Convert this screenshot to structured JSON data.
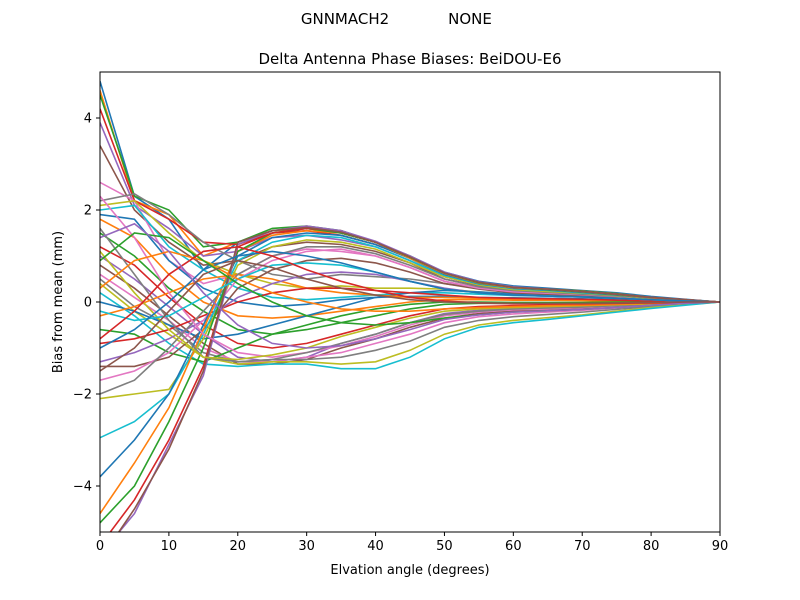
{
  "figure": {
    "suptitle_left": "GNNMACH2",
    "suptitle_right": "NONE"
  },
  "chart_data": {
    "type": "line",
    "title": "Delta Antenna Phase Biases: BeiDOU-E6",
    "xlabel": "Elvation angle (degrees)",
    "ylabel": "Bias from mean (mm)",
    "xlim": [
      0,
      90
    ],
    "ylim": [
      -5,
      5
    ],
    "xticks": [
      0,
      10,
      20,
      30,
      40,
      50,
      60,
      70,
      80,
      90
    ],
    "yticks": [
      -4,
      -2,
      0,
      2,
      4
    ],
    "ytick_labels": [
      "−4",
      "−2",
      "0",
      "2",
      "4"
    ],
    "grid": false,
    "legend": "none",
    "x": [
      0,
      5,
      10,
      15,
      20,
      25,
      30,
      35,
      40,
      45,
      50,
      55,
      60,
      65,
      70,
      75,
      80,
      85,
      90
    ],
    "series_colors": [
      "#1f77b4",
      "#ff7f0e",
      "#2ca02c",
      "#d62728",
      "#9467bd",
      "#8c564b",
      "#e377c2",
      "#7f7f7f",
      "#bcbd22",
      "#17becf"
    ],
    "series": [
      {
        "values": [
          4.8,
          2.3,
          1.8,
          0.7,
          1.3,
          1.55,
          1.6,
          1.5,
          1.3,
          1.0,
          0.65,
          0.45,
          0.35,
          0.3,
          0.25,
          0.2,
          0.12,
          0.06,
          0.0
        ]
      },
      {
        "values": [
          4.6,
          2.2,
          1.9,
          1.0,
          1.3,
          1.55,
          1.6,
          1.5,
          1.3,
          0.95,
          0.6,
          0.42,
          0.32,
          0.28,
          0.24,
          0.18,
          0.1,
          0.05,
          0.0
        ]
      },
      {
        "values": [
          4.5,
          2.3,
          2.0,
          1.2,
          1.3,
          1.6,
          1.65,
          1.55,
          1.3,
          1.0,
          0.62,
          0.42,
          0.32,
          0.28,
          0.24,
          0.18,
          0.1,
          0.05,
          0.0
        ]
      },
      {
        "values": [
          4.2,
          2.2,
          1.8,
          1.3,
          1.25,
          1.5,
          1.55,
          1.45,
          1.25,
          0.95,
          0.6,
          0.4,
          0.3,
          0.27,
          0.23,
          0.17,
          0.1,
          0.05,
          0.0
        ]
      },
      {
        "values": [
          3.9,
          2.1,
          1.6,
          1.0,
          1.1,
          1.4,
          1.45,
          1.35,
          1.2,
          0.9,
          0.55,
          0.38,
          0.28,
          0.25,
          0.2,
          0.15,
          0.09,
          0.04,
          0.0
        ]
      },
      {
        "values": [
          3.4,
          2.0,
          1.3,
          0.8,
          0.9,
          1.2,
          1.3,
          1.25,
          1.1,
          0.85,
          0.5,
          0.35,
          0.26,
          0.23,
          0.19,
          0.14,
          0.08,
          0.04,
          0.0
        ]
      },
      {
        "values": [
          2.6,
          2.2,
          0.9,
          0.4,
          0.6,
          1.0,
          1.15,
          1.1,
          1.0,
          0.75,
          0.45,
          0.3,
          0.22,
          0.2,
          0.17,
          0.12,
          0.07,
          0.03,
          0.0
        ]
      },
      {
        "values": [
          2.2,
          2.35,
          1.9,
          1.3,
          0.9,
          0.6,
          0.5,
          0.6,
          0.55,
          0.5,
          0.4,
          0.3,
          0.22,
          0.2,
          0.17,
          0.12,
          0.07,
          0.03,
          0.0
        ]
      },
      {
        "values": [
          2.1,
          2.2,
          1.5,
          0.9,
          0.6,
          0.4,
          0.3,
          0.35,
          0.3,
          0.3,
          0.28,
          0.22,
          0.18,
          0.17,
          0.14,
          0.1,
          0.06,
          0.03,
          0.0
        ]
      },
      {
        "values": [
          2.0,
          2.1,
          1.2,
          0.7,
          0.3,
          0.1,
          0.05,
          0.1,
          0.15,
          0.2,
          0.2,
          0.17,
          0.14,
          0.13,
          0.11,
          0.08,
          0.05,
          0.02,
          0.0
        ]
      },
      {
        "values": [
          1.9,
          1.8,
          0.9,
          0.3,
          0.0,
          -0.1,
          -0.05,
          0.05,
          0.1,
          0.12,
          0.12,
          0.1,
          0.09,
          0.08,
          0.07,
          0.05,
          0.03,
          0.01,
          0.0
        ]
      },
      {
        "values": [
          1.8,
          1.4,
          0.6,
          0.0,
          -0.3,
          -0.35,
          -0.3,
          -0.2,
          -0.1,
          0.0,
          0.05,
          0.05,
          0.04,
          0.04,
          0.03,
          0.02,
          0.01,
          0.0,
          0.0
        ]
      },
      {
        "values": [
          1.5,
          1.0,
          0.3,
          -0.2,
          -0.6,
          -0.7,
          -0.6,
          -0.45,
          -0.3,
          -0.15,
          -0.05,
          -0.03,
          -0.03,
          -0.02,
          -0.02,
          -0.01,
          0.0,
          0.0,
          0.0
        ]
      },
      {
        "values": [
          1.2,
          0.8,
          0.1,
          -0.5,
          -0.9,
          -1.0,
          -0.9,
          -0.7,
          -0.5,
          -0.3,
          -0.15,
          -0.1,
          -0.08,
          -0.07,
          -0.06,
          -0.04,
          -0.02,
          -0.01,
          0.0
        ]
      },
      {
        "values": [
          1.0,
          0.5,
          -0.1,
          -0.7,
          -1.2,
          -1.3,
          -1.2,
          -0.9,
          -0.7,
          -0.45,
          -0.25,
          -0.18,
          -0.14,
          -0.12,
          -0.1,
          -0.07,
          -0.04,
          -0.02,
          0.0
        ]
      },
      {
        "values": [
          0.8,
          0.3,
          -0.3,
          -0.9,
          -1.35,
          -1.35,
          -1.25,
          -1.0,
          -0.8,
          -0.55,
          -0.35,
          -0.25,
          -0.2,
          -0.17,
          -0.14,
          -0.1,
          -0.06,
          -0.03,
          0.0
        ]
      },
      {
        "values": [
          0.6,
          0.1,
          -0.4,
          -1.0,
          -1.3,
          -1.3,
          -1.2,
          -1.1,
          -0.9,
          -0.7,
          -0.45,
          -0.32,
          -0.26,
          -0.22,
          -0.18,
          -0.13,
          -0.08,
          -0.04,
          0.0
        ]
      },
      {
        "values": [
          0.5,
          -0.1,
          -0.5,
          -1.1,
          -1.3,
          -1.25,
          -1.25,
          -1.2,
          -1.05,
          -0.85,
          -0.55,
          -0.4,
          -0.32,
          -0.27,
          -0.22,
          -0.16,
          -0.1,
          -0.05,
          0.0
        ]
      },
      {
        "values": [
          0.4,
          -0.2,
          -0.7,
          -1.2,
          -1.35,
          -1.3,
          -1.3,
          -1.35,
          -1.3,
          -1.05,
          -0.7,
          -0.5,
          -0.4,
          -0.34,
          -0.28,
          -0.2,
          -0.12,
          -0.06,
          0.0
        ]
      },
      {
        "values": [
          0.2,
          -0.3,
          -0.9,
          -1.35,
          -1.4,
          -1.35,
          -1.35,
          -1.45,
          -1.45,
          -1.2,
          -0.8,
          -0.55,
          -0.45,
          -0.38,
          -0.3,
          -0.22,
          -0.14,
          -0.07,
          0.0
        ]
      },
      {
        "values": [
          0.0,
          -0.2,
          -0.5,
          -0.8,
          -0.7,
          -0.5,
          -0.3,
          -0.1,
          0.1,
          0.2,
          0.25,
          0.22,
          0.18,
          0.16,
          0.13,
          0.1,
          0.06,
          0.03,
          0.0
        ]
      },
      {
        "values": [
          -0.3,
          -0.1,
          0.2,
          0.5,
          0.6,
          0.5,
          0.3,
          0.2,
          0.15,
          0.1,
          0.1,
          0.08,
          0.06,
          0.05,
          0.04,
          0.03,
          0.02,
          0.01,
          0.0
        ]
      },
      {
        "values": [
          -0.6,
          -0.7,
          -1.1,
          -1.3,
          -1.0,
          -0.7,
          -0.5,
          -0.3,
          -0.15,
          -0.05,
          0.0,
          0.0,
          -0.01,
          -0.01,
          -0.01,
          0.0,
          0.0,
          0.0,
          0.0
        ]
      },
      {
        "values": [
          -0.9,
          -0.8,
          -0.6,
          -0.3,
          0.0,
          0.2,
          0.3,
          0.3,
          0.25,
          0.2,
          0.15,
          0.1,
          0.08,
          0.07,
          0.06,
          0.04,
          0.02,
          0.01,
          0.0
        ]
      },
      {
        "values": [
          -1.3,
          -1.1,
          -0.8,
          -0.4,
          0.1,
          0.4,
          0.6,
          0.65,
          0.6,
          0.45,
          0.3,
          0.2,
          0.15,
          0.13,
          0.11,
          0.08,
          0.05,
          0.02,
          0.0
        ]
      },
      {
        "values": [
          -1.4,
          -1.4,
          -1.2,
          -0.6,
          0.3,
          0.7,
          0.9,
          0.95,
          0.85,
          0.65,
          0.4,
          0.28,
          0.2,
          0.17,
          0.14,
          0.1,
          0.06,
          0.03,
          0.0
        ]
      },
      {
        "values": [
          -1.7,
          -1.5,
          -1.1,
          -0.4,
          0.5,
          0.9,
          1.1,
          1.15,
          1.0,
          0.75,
          0.45,
          0.3,
          0.22,
          0.19,
          0.16,
          0.12,
          0.07,
          0.03,
          0.0
        ]
      },
      {
        "values": [
          -2.0,
          -1.7,
          -1.0,
          -0.2,
          0.6,
          1.0,
          1.2,
          1.2,
          1.05,
          0.8,
          0.5,
          0.33,
          0.25,
          0.21,
          0.17,
          0.13,
          0.08,
          0.04,
          0.0
        ]
      },
      {
        "values": [
          -2.1,
          -2.0,
          -1.9,
          -0.8,
          0.8,
          1.2,
          1.35,
          1.3,
          1.15,
          0.85,
          0.55,
          0.37,
          0.27,
          0.23,
          0.19,
          0.14,
          0.08,
          0.04,
          0.0
        ]
      },
      {
        "values": [
          -2.95,
          -2.6,
          -2.0,
          -0.7,
          0.9,
          1.3,
          1.45,
          1.4,
          1.2,
          0.9,
          0.58,
          0.39,
          0.29,
          0.25,
          0.2,
          0.15,
          0.09,
          0.04,
          0.0
        ]
      },
      {
        "values": [
          -3.8,
          -3.0,
          -2.0,
          -0.5,
          1.0,
          1.4,
          1.5,
          1.45,
          1.25,
          0.95,
          0.6,
          0.4,
          0.3,
          0.26,
          0.21,
          0.15,
          0.09,
          0.04,
          0.0
        ]
      },
      {
        "values": [
          -4.6,
          -3.5,
          -2.3,
          -0.6,
          1.1,
          1.45,
          1.55,
          1.5,
          1.3,
          0.95,
          0.62,
          0.41,
          0.31,
          0.27,
          0.22,
          0.16,
          0.09,
          0.04,
          0.0
        ]
      },
      {
        "values": [
          -4.8,
          -4.0,
          -2.6,
          -1.0,
          1.1,
          1.5,
          1.6,
          1.5,
          1.3,
          0.97,
          0.63,
          0.42,
          0.32,
          0.27,
          0.22,
          0.16,
          0.1,
          0.05,
          0.0
        ]
      },
      {
        "values": [
          -5.3,
          -4.3,
          -3.0,
          -1.4,
          1.2,
          1.5,
          1.6,
          1.55,
          1.3,
          0.98,
          0.64,
          0.43,
          0.32,
          0.28,
          0.23,
          0.17,
          0.1,
          0.05,
          0.0
        ]
      },
      {
        "values": [
          -5.5,
          -4.6,
          -3.1,
          -1.6,
          1.25,
          1.55,
          1.65,
          1.55,
          1.32,
          1.0,
          0.65,
          0.44,
          0.33,
          0.28,
          0.23,
          0.17,
          0.1,
          0.05,
          0.0
        ]
      },
      {
        "values": [
          -5.6,
          -4.5,
          -3.2,
          -1.5,
          1.3,
          1.55,
          1.62,
          1.52,
          1.3,
          0.98,
          0.63,
          0.43,
          0.32,
          0.28,
          0.23,
          0.17,
          0.1,
          0.05,
          0.0
        ]
      },
      {
        "values": [
          2.3,
          1.4,
          0.2,
          -0.7,
          -1.1,
          -1.2,
          -1.1,
          -0.95,
          -0.75,
          -0.5,
          -0.3,
          -0.22,
          -0.17,
          -0.15,
          -0.12,
          -0.09,
          -0.05,
          -0.02,
          0.0
        ]
      },
      {
        "values": [
          1.6,
          0.6,
          -0.4,
          -1.2,
          -1.3,
          -1.25,
          -1.1,
          -0.9,
          -0.7,
          -0.45,
          -0.27,
          -0.2,
          -0.15,
          -0.13,
          -0.11,
          -0.08,
          -0.05,
          -0.02,
          0.0
        ]
      },
      {
        "values": [
          1.1,
          0.2,
          -0.6,
          -1.2,
          -1.25,
          -1.15,
          -1.0,
          -0.75,
          -0.55,
          -0.35,
          -0.2,
          -0.15,
          -0.12,
          -0.1,
          -0.08,
          -0.06,
          -0.04,
          -0.02,
          0.0
        ]
      },
      {
        "values": [
          -0.2,
          -0.4,
          -0.3,
          0.1,
          0.5,
          0.8,
          0.85,
          0.8,
          0.65,
          0.45,
          0.28,
          0.2,
          0.15,
          0.13,
          0.11,
          0.08,
          0.05,
          0.02,
          0.0
        ]
      },
      {
        "values": [
          -1.0,
          -0.6,
          0.0,
          0.7,
          1.0,
          1.1,
          1.0,
          0.85,
          0.65,
          0.45,
          0.28,
          0.2,
          0.15,
          0.13,
          0.11,
          0.08,
          0.05,
          0.02,
          0.0
        ]
      },
      {
        "values": [
          0.3,
          0.9,
          1.1,
          0.9,
          0.5,
          0.2,
          0.0,
          -0.15,
          -0.2,
          -0.2,
          -0.15,
          -0.12,
          -0.1,
          -0.08,
          -0.07,
          -0.05,
          -0.03,
          -0.01,
          0.0
        ]
      },
      {
        "values": [
          0.9,
          1.5,
          1.4,
          0.9,
          0.4,
          0.0,
          -0.3,
          -0.45,
          -0.5,
          -0.45,
          -0.35,
          -0.28,
          -0.22,
          -0.19,
          -0.16,
          -0.12,
          -0.07,
          -0.03,
          0.0
        ]
      },
      {
        "values": [
          -0.8,
          -0.2,
          0.6,
          1.1,
          1.2,
          1.0,
          0.7,
          0.45,
          0.25,
          0.1,
          0.02,
          -0.02,
          -0.04,
          -0.04,
          -0.04,
          -0.03,
          -0.02,
          -0.01,
          0.0
        ]
      },
      {
        "values": [
          1.4,
          1.7,
          1.1,
          0.2,
          -0.5,
          -0.9,
          -1.0,
          -0.95,
          -0.8,
          -0.6,
          -0.38,
          -0.28,
          -0.22,
          -0.19,
          -0.16,
          -0.12,
          -0.07,
          -0.03,
          0.0
        ]
      },
      {
        "values": [
          -1.5,
          -1.0,
          -0.2,
          0.6,
          0.9,
          0.75,
          0.5,
          0.3,
          0.15,
          0.05,
          0.0,
          -0.02,
          -0.03,
          -0.03,
          -0.03,
          -0.02,
          -0.01,
          0.0,
          0.0
        ]
      }
    ]
  }
}
